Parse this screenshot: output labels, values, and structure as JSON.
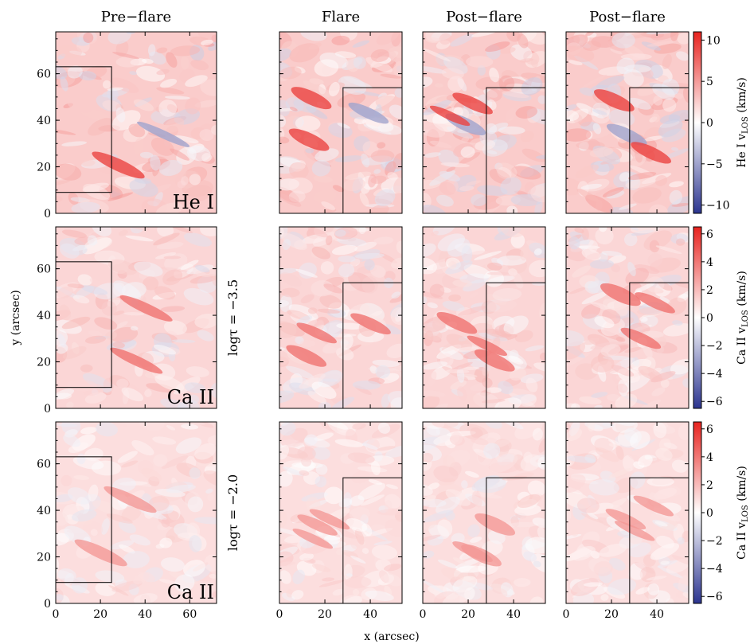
{
  "chart_data": {
    "type": "heatmap",
    "xlabel": "x (arcsec)",
    "ylabel": "y (arcsec)",
    "columns": [
      {
        "title": "Pre−flare",
        "xlim": [
          0,
          72
        ],
        "xticks": [
          "0",
          "20",
          "40",
          "60"
        ],
        "box_x": [
          0,
          25
        ]
      },
      {
        "title": "Flare",
        "xlim": [
          0,
          54
        ],
        "xticks": [
          "0",
          "20",
          "40"
        ],
        "box_x": [
          28,
          54
        ]
      },
      {
        "title": "Post−flare",
        "xlim": [
          0,
          54
        ],
        "xticks": [
          "0",
          "20",
          "40"
        ],
        "box_x": [
          28,
          54
        ]
      },
      {
        "title": "Post−flare",
        "xlim": [
          0,
          54
        ],
        "xticks": [
          "0",
          "20",
          "40"
        ],
        "box_x": [
          28,
          54
        ]
      }
    ],
    "ylim": [
      0,
      78
    ],
    "yticks": [
      "0",
      "20",
      "40",
      "60"
    ],
    "box_y": [
      [
        9,
        63
      ],
      [
        0,
        54
      ],
      [
        0,
        54
      ],
      [
        0,
        54
      ]
    ],
    "rows": [
      {
        "panel_label": "He I",
        "side_label": "",
        "colorbar": {
          "label": "He I v",
          "label_sub": "LOS",
          "label_unit": " (km/s)",
          "range": [
            -11,
            11
          ],
          "ticks": [
            "−10",
            "−5",
            "0",
            "5",
            "10"
          ],
          "tick_values": [
            -10,
            -5,
            0,
            5,
            10
          ]
        }
      },
      {
        "panel_label": "Ca II",
        "side_label": "logτ = −3.5",
        "colorbar": {
          "label": "Ca II v",
          "label_sub": "LOS",
          "label_unit": " (km/s)",
          "range": [
            -6.5,
            6.5
          ],
          "ticks": [
            "−6",
            "−4",
            "−2",
            "0",
            "2",
            "4",
            "6"
          ],
          "tick_values": [
            -6,
            -4,
            -2,
            0,
            2,
            4,
            6
          ]
        }
      },
      {
        "panel_label": "Ca II",
        "side_label": "logτ = −2.0",
        "colorbar": {
          "label": "Ca II v",
          "label_sub": "LOS",
          "label_unit": " (km/s)",
          "range": [
            -6.5,
            6.5
          ],
          "ticks": [
            "−6",
            "−4",
            "−2",
            "0",
            "2",
            "4",
            "6"
          ],
          "tick_values": [
            -6,
            -4,
            -2,
            0,
            2,
            4,
            6
          ]
        }
      }
    ],
    "colormap": {
      "negative": "#2c3590",
      "zero": "#ffffff",
      "positive": "#e8231f"
    }
  }
}
